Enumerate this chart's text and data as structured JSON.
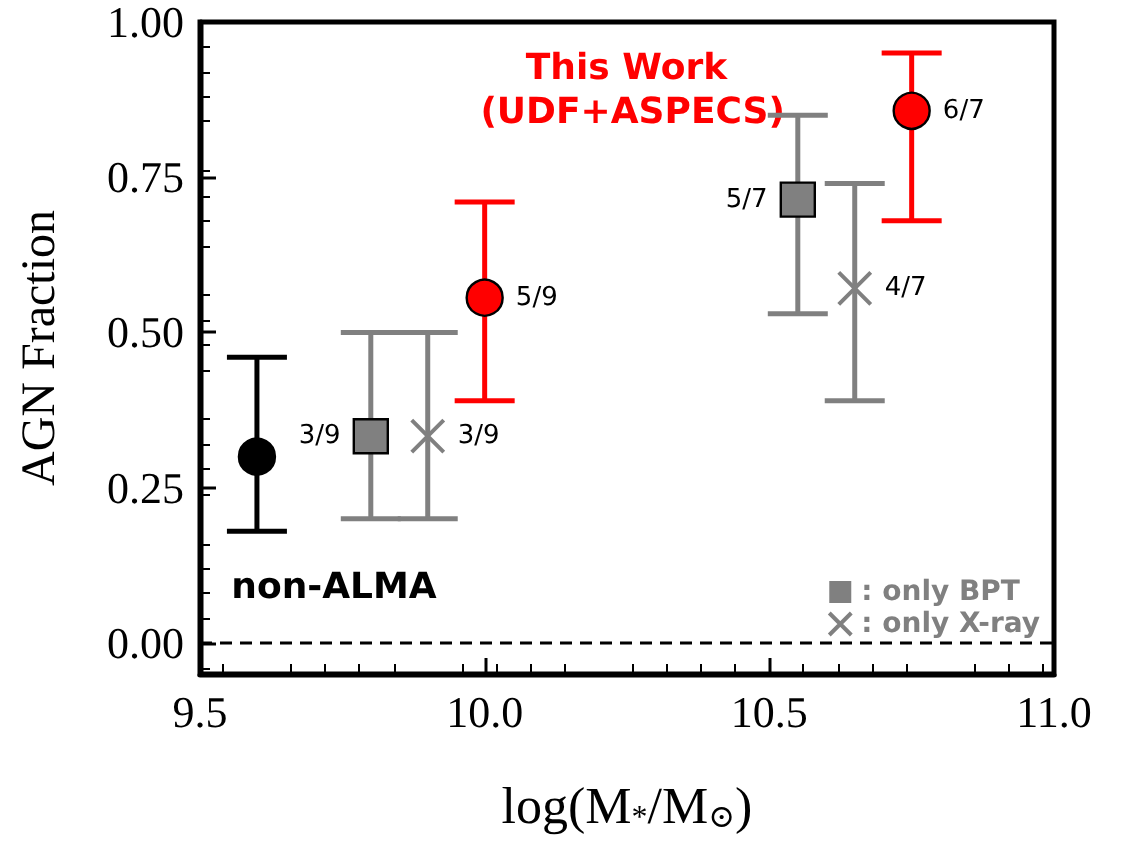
{
  "chart_data": {
    "type": "scatter",
    "xlabel": "log(M$_{*}$/M$_{⊙}$)",
    "ylabel": "AGN Fraction",
    "xlim": [
      9.5,
      11.0
    ],
    "xticks": [
      9.5,
      {
        "value": 10,
        "label": "10.0"
      },
      10.5,
      {
        "value": 11,
        "label": "11.0"
      }
    ],
    "ylim": [
      -0.05,
      1
    ],
    "yticks": [
      {
        "value": 0,
        "label": "0.00"
      },
      0.25,
      {
        "value": 0.5,
        "label": "0.50"
      },
      0.75,
      {
        "value": 1,
        "label": "1.00"
      }
    ],
    "grid": false,
    "legend": "bottom",
    "ref_lines": [
      {
        "axis": "y",
        "value": 0,
        "color": "#000000",
        "line_style": "dashed"
      }
    ],
    "series": [
      {
        "name": "non-ALMA",
        "color": "#000000",
        "marker": "circle",
        "x": [
          9.6
        ],
        "values": [
          0.3
        ],
        "errors": [
          [
            0.18,
            0.46
          ]
        ]
      },
      {
        "name": ": only BPT",
        "color": "#808080",
        "marker": "square",
        "x": [
          9.8,
          10.55
        ],
        "values": [
          0.333,
          0.714
        ],
        "errors": [
          [
            0.2,
            0.5
          ],
          [
            0.53,
            0.85
          ]
        ],
        "value_labels": [
          "3/9",
          "5/7"
        ]
      },
      {
        "name": ": only X-ray",
        "color": "#808080",
        "marker": "cross",
        "x": [
          9.9,
          10.65
        ],
        "values": [
          0.333,
          0.571
        ],
        "errors": [
          [
            0.2,
            0.5
          ],
          [
            0.39,
            0.74
          ]
        ],
        "value_labels": [
          "3/9",
          "4/7"
        ]
      },
      {
        "name": "This Work (UDF+ASPECS)",
        "color": "#ff0000",
        "marker": "circle",
        "x": [
          10.0,
          10.75
        ],
        "values": [
          0.556,
          0.857
        ],
        "errors": [
          [
            0.39,
            0.71
          ],
          [
            0.68,
            0.95
          ]
        ],
        "value_labels": [
          "5/9",
          "6/7"
        ]
      }
    ]
  }
}
